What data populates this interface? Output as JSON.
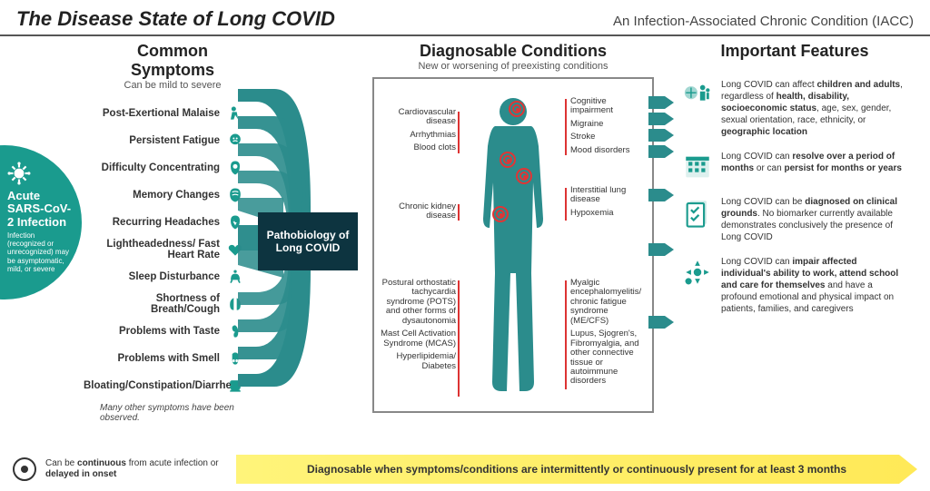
{
  "colors": {
    "teal": "#1a9b8e",
    "teal_dark": "#0d3440",
    "teal_bars": "#2b8c8c",
    "red": "#e03535",
    "yellow_start": "#fff47a",
    "yellow_end": "#ffe957",
    "rule": "#555555",
    "text": "#333333"
  },
  "header": {
    "title": "The Disease State of Long COVID",
    "right": "An Infection-Associated Chronic Condition (IACC)"
  },
  "acute": {
    "title": "Acute SARS-CoV-2 Infection",
    "sub": "Infection (recognized or unrecognized) may be asymptomatic, mild, or severe"
  },
  "symptoms": {
    "heading": "Common Symptoms",
    "sub": "Can be mild to severe",
    "items": [
      "Post-Exertional Malaise",
      "Persistent Fatigue",
      "Difficulty Concentrating",
      "Memory Changes",
      "Recurring Headaches",
      "Lightheadedness/ Fast Heart Rate",
      "Sleep Disturbance",
      "Shortness of Breath/Cough",
      "Problems with Taste",
      "Problems with Smell",
      "Bloating/Constipation/Diarrhea"
    ],
    "note": "Many other symptoms have been observed."
  },
  "patho": "Pathobiology of Long COVID",
  "diagnosable": {
    "heading": "Diagnosable Conditions",
    "sub": "New or worsening of preexisting conditions",
    "left_top": [
      "Cardiovascular disease",
      "Arrhythmias",
      "Blood clots"
    ],
    "left_mid": [
      "Chronic kidney disease"
    ],
    "left_bot": [
      "Postural orthostatic tachycardia syndrome (POTS) and other forms of dysautonomia",
      "Mast Cell Activation Syndrome (MCAS)",
      "Hyperlipidemia/ Diabetes"
    ],
    "right_top": [
      "Cognitive impairment",
      "Migraine",
      "Stroke",
      "Mood disorders"
    ],
    "right_mid": [
      "Interstitial lung disease",
      "Hypoxemia"
    ],
    "right_bot": [
      "Myalgic encephalomyelitis/ chronic fatigue syndrome (ME/CFS)",
      "Lupus, Sjogren's, Fibromyalgia, and other connective tissue or autoimmune disorders"
    ]
  },
  "features": {
    "heading": "Important Features",
    "items": [
      "Long COVID can affect <b>children and adults</b>, regardless of <b>health, disability, socioeconomic status</b>, age, sex, gender, sexual orientation, race, ethnicity, or <b>geographic location</b>",
      "Long COVID can <b>resolve over a period of months</b> or can <b>persist for months or years</b>",
      "Long COVID can be <b>diagnosed on clinical grounds</b>. No biomarker currently available demonstrates conclusively the presence of Long COVID",
      "Long COVID can <b>impair affected individual's ability to work, attend school and care for themselves</b> and have a profound emotional and physical impact on patients, families, and caregivers"
    ]
  },
  "footer": {
    "left": "Can be <b>continuous</b> from acute infection or <b>delayed in onset</b>",
    "arrow": "Diagnosable when symptoms/conditions are intermittently or continuously present for at least 3 months"
  }
}
